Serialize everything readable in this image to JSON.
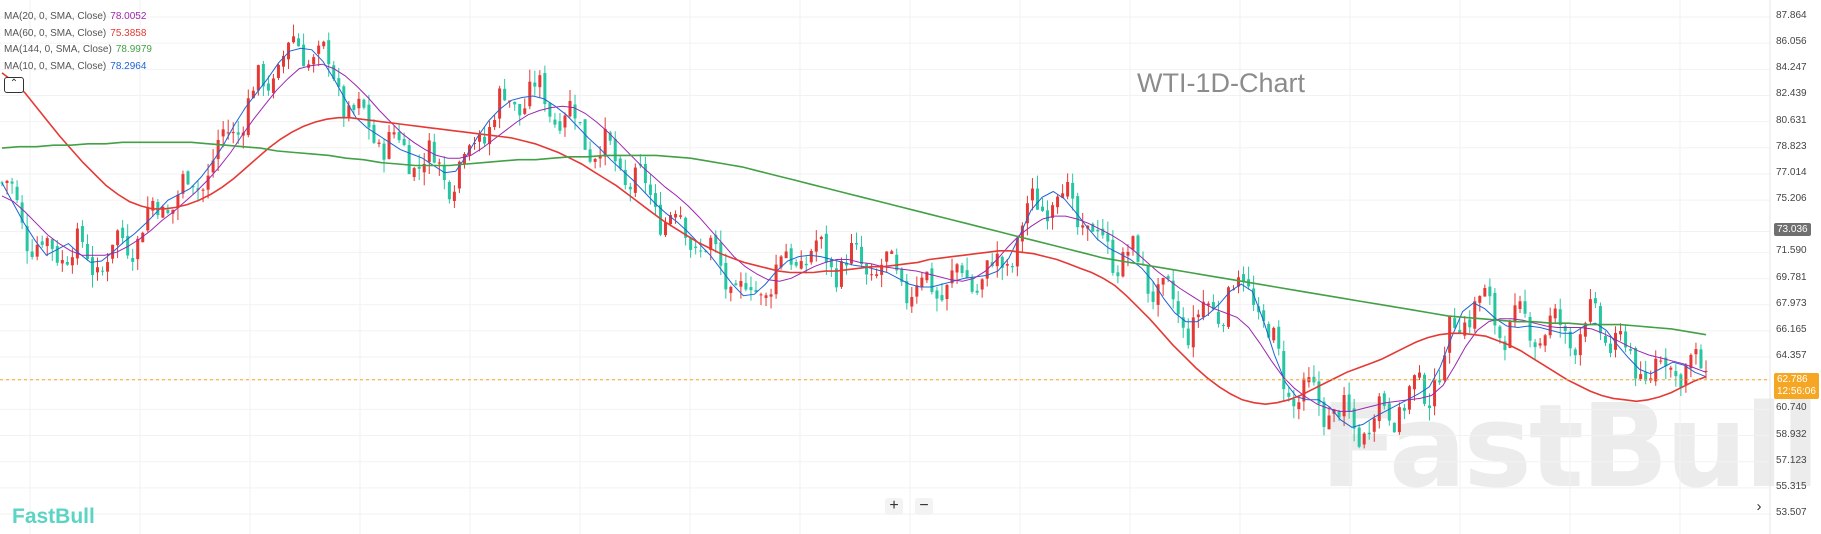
{
  "chart_title": "WTI-1D-Chart",
  "brand": "FastBull",
  "watermark": "FastBull",
  "legend": [
    {
      "label": "MA(20, 0, SMA, Close)",
      "value": "78.0052",
      "color": "#9c27b0"
    },
    {
      "label": "MA(60, 0, SMA, Close)",
      "value": "75.3858",
      "color": "#e53935"
    },
    {
      "label": "MA(144, 0, SMA, Close)",
      "value": "78.9979",
      "color": "#43a047"
    },
    {
      "label": "MA(10, 0, SMA, Close)",
      "value": "78.2964",
      "color": "#1e63d6"
    }
  ],
  "controls": {
    "collapse": "⌃",
    "zoom_in": "+",
    "zoom_out": "−",
    "scroll_right": "›"
  },
  "price_axis": [
    "87.864",
    "86.056",
    "84.247",
    "82.439",
    "80.631",
    "78.823",
    "77.014",
    "75.206",
    "73.036",
    "71.590",
    "69.781",
    "67.973",
    "66.165",
    "64.357",
    "62.786",
    "60.740",
    "58.932",
    "57.123",
    "55.315",
    "53.507"
  ],
  "hover_price": "73.036",
  "last_price": "62.786",
  "countdown": "12:56:06",
  "colors": {
    "up": "#e53935",
    "down": "#26c6a2",
    "ma10": "#1e63d6",
    "ma20": "#9c27b0",
    "ma60": "#e53935",
    "ma144": "#43a047"
  },
  "chart_data": {
    "type": "candlestick",
    "title": "WTI-1D-Chart",
    "ylim": [
      53.507,
      87.864
    ],
    "grid": true,
    "legend_position": "top-left",
    "series": [
      {
        "name": "MA(10, 0, SMA, Close)",
        "color": "#1e63d6",
        "values": [
          76.4,
          75,
          73.6,
          72.4,
          71.4,
          71.8,
          72.2,
          71.5,
          70.9,
          71,
          71.6,
          72.3,
          72.9,
          73.6,
          74.4,
          75.2,
          75.6,
          76,
          76.8,
          77.8,
          79,
          80.4,
          81.6,
          82.6,
          83.6,
          84.7,
          85.5,
          85.7,
          85.6,
          84.8,
          83.6,
          82.2,
          80.9,
          80.2,
          79.7,
          79.2,
          78.7,
          78.4,
          78.1,
          77.6,
          77.1,
          77.2,
          78.3,
          79.6,
          80.7,
          81.5,
          82.1,
          82.3,
          82.4,
          82.2,
          81.7,
          81.1,
          80.3,
          79.5,
          78.8,
          78,
          77.3,
          76.6,
          75.8,
          75,
          74.3,
          73.7,
          73,
          72.2,
          71.4,
          70.4,
          69.4,
          68.6,
          68.7,
          69.4,
          70.3,
          71,
          71.3,
          71.4,
          71.3,
          71.1,
          70.9,
          70.7,
          70.6,
          70.4,
          70.2,
          69.8,
          69.4,
          69.2,
          69.2,
          69.4,
          69.6,
          69.8,
          69.9,
          70,
          70.3,
          71.2,
          72.8,
          74.5,
          75.4,
          75.8,
          75.3,
          74.4,
          73.4,
          72.5,
          71.9,
          71.5,
          71.1,
          70.5,
          69.6,
          68.4,
          67.4,
          66.8,
          66.8,
          67.3,
          68,
          68.9,
          69.4,
          68.9,
          66.9,
          64.5,
          62.6,
          61.6,
          61.4,
          61.4,
          60.9,
          60,
          59.5,
          59.7,
          60.2,
          60.6,
          61,
          61.4,
          61.8,
          62.3,
          63.7,
          65.7,
          67.5,
          68.1,
          67.7,
          67,
          66.5,
          66.4,
          66.5,
          66.4,
          66.2,
          66,
          66,
          66.5,
          66.7,
          66.2,
          65.2,
          64.3,
          63.5,
          63.2,
          63.6,
          64,
          63.8,
          63.3,
          63
        ]
      },
      {
        "name": "MA(20, 0, SMA, Close)",
        "color": "#9c27b0",
        "values": [
          75.5,
          75.1,
          74.4,
          73.6,
          72.8,
          72.2,
          71.7,
          71.4,
          71.4,
          71.4,
          71.6,
          72,
          72.5,
          73.1,
          73.8,
          74.4,
          75.1,
          75.8,
          76.6,
          77.5,
          78.5,
          79.7,
          80.8,
          81.8,
          82.8,
          83.6,
          84.3,
          84.5,
          84.6,
          84.3,
          83.8,
          83.1,
          82.3,
          81.4,
          80.6,
          79.8,
          79.2,
          78.7,
          78.3,
          78.1,
          78.1,
          78.3,
          78.8,
          79.4,
          80,
          80.6,
          81.1,
          81.4,
          81.6,
          81.7,
          81.6,
          81.2,
          80.6,
          79.9,
          79.1,
          78.3,
          77.5,
          76.8,
          76.1,
          75.5,
          74.8,
          74,
          73.1,
          72.2,
          71.3,
          70.6,
          70.1,
          69.7,
          69.6,
          69.8,
          70.2,
          70.6,
          70.9,
          71.1,
          71.1,
          70.9,
          70.8,
          70.6,
          70.5,
          70.4,
          70.3,
          70.1,
          69.9,
          69.7,
          69.6,
          69.8,
          70.3,
          71.1,
          72,
          72.8,
          73.4,
          73.9,
          74.1,
          74.1,
          73.9,
          73.6,
          73.2,
          72.8,
          72.3,
          71.7,
          71,
          70.3,
          69.7,
          69.1,
          68.6,
          68.1,
          67.7,
          67.4,
          67.1,
          66.4,
          65.3,
          64.1,
          63,
          62.2,
          61.6,
          61.1,
          60.8,
          60.6,
          60.6,
          60.8,
          61,
          61.2,
          61.3,
          61.4,
          61.5,
          61.7,
          62.4,
          63.7,
          65.1,
          66.2,
          66.8,
          67,
          67,
          66.9,
          66.7,
          66.5,
          66.4,
          66.4,
          66.4,
          66.3,
          66,
          65.6,
          65.2,
          64.8,
          64.5,
          64.3,
          64.1,
          63.9,
          63.6,
          63.3
        ]
      },
      {
        "name": "MA(60, 0, SMA, Close)",
        "color": "#e53935",
        "values": [
          84,
          83.4,
          82.6,
          81.6,
          80.6,
          79.6,
          78.7,
          77.8,
          77,
          76.2,
          75.6,
          75.1,
          74.8,
          74.6,
          74.6,
          74.7,
          74.9,
          75.2,
          75.6,
          76.1,
          76.7,
          77.4,
          78.1,
          78.8,
          79.4,
          79.9,
          80.3,
          80.6,
          80.8,
          80.9,
          80.9,
          80.8,
          80.7,
          80.6,
          80.5,
          80.4,
          80.3,
          80.2,
          80.1,
          80,
          79.9,
          79.8,
          79.7,
          79.6,
          79.5,
          79.3,
          79.1,
          78.8,
          78.5,
          78.1,
          77.7,
          77.2,
          76.7,
          76.2,
          75.6,
          75,
          74.4,
          73.8,
          73.3,
          72.8,
          72.3,
          71.9,
          71.5,
          71.2,
          70.9,
          70.7,
          70.5,
          70.3,
          70.2,
          70.2,
          70.2,
          70.3,
          70.3,
          70.4,
          70.5,
          70.6,
          70.6,
          70.7,
          70.8,
          70.9,
          71.1,
          71.2,
          71.3,
          71.4,
          71.5,
          71.6,
          71.7,
          71.7,
          71.6,
          71.5,
          71.3,
          71.1,
          70.8,
          70.5,
          70.2,
          69.8,
          69.3,
          68.6,
          67.8,
          67,
          66.1,
          65.2,
          64.4,
          63.6,
          62.9,
          62.3,
          61.8,
          61.4,
          61.2,
          61.1,
          61.2,
          61.4,
          61.7,
          62.1,
          62.5,
          62.9,
          63.3,
          63.6,
          63.9,
          64.2,
          64.6,
          65,
          65.4,
          65.7,
          65.9,
          66,
          66,
          65.9,
          65.8,
          65.5,
          65.2,
          64.8,
          64.3,
          63.8,
          63.3,
          62.8,
          62.4,
          62,
          61.7,
          61.5,
          61.4,
          61.3,
          61.4,
          61.6,
          61.9,
          62.3,
          62.7,
          63
        ]
      },
      {
        "name": "MA(144, 0, SMA, Close)",
        "color": "#43a047",
        "values": [
          78.8,
          78.9,
          78.9,
          79,
          79,
          79.1,
          79.1,
          79.2,
          79.2,
          79.2,
          79.2,
          79.2,
          79.1,
          79,
          78.9,
          78.8,
          78.6,
          78.5,
          78.4,
          78.3,
          78.1,
          78,
          77.8,
          77.7,
          77.6,
          77.6,
          77.6,
          77.7,
          77.8,
          77.9,
          78,
          78,
          78.1,
          78.2,
          78.2,
          78.3,
          78.3,
          78.3,
          78.3,
          78.2,
          78.1,
          77.9,
          77.7,
          77.5,
          77.2,
          76.9,
          76.6,
          76.3,
          76,
          75.7,
          75.4,
          75.1,
          74.8,
          74.5,
          74.2,
          73.9,
          73.6,
          73.3,
          73,
          72.7,
          72.4,
          72.1,
          71.8,
          71.5,
          71.2,
          71,
          70.8,
          70.6,
          70.4,
          70.2,
          70,
          69.8,
          69.6,
          69.4,
          69.2,
          69,
          68.8,
          68.6,
          68.4,
          68.2,
          68,
          67.8,
          67.6,
          67.4,
          67.2,
          67.1,
          67,
          66.9,
          66.8,
          66.8,
          66.7,
          66.7,
          66.6,
          66.6,
          66.6,
          66.5,
          66.4,
          66.3,
          66.1,
          65.9
        ]
      }
    ],
    "candles_note": "daily OHLC candles, red = up, green = down"
  }
}
